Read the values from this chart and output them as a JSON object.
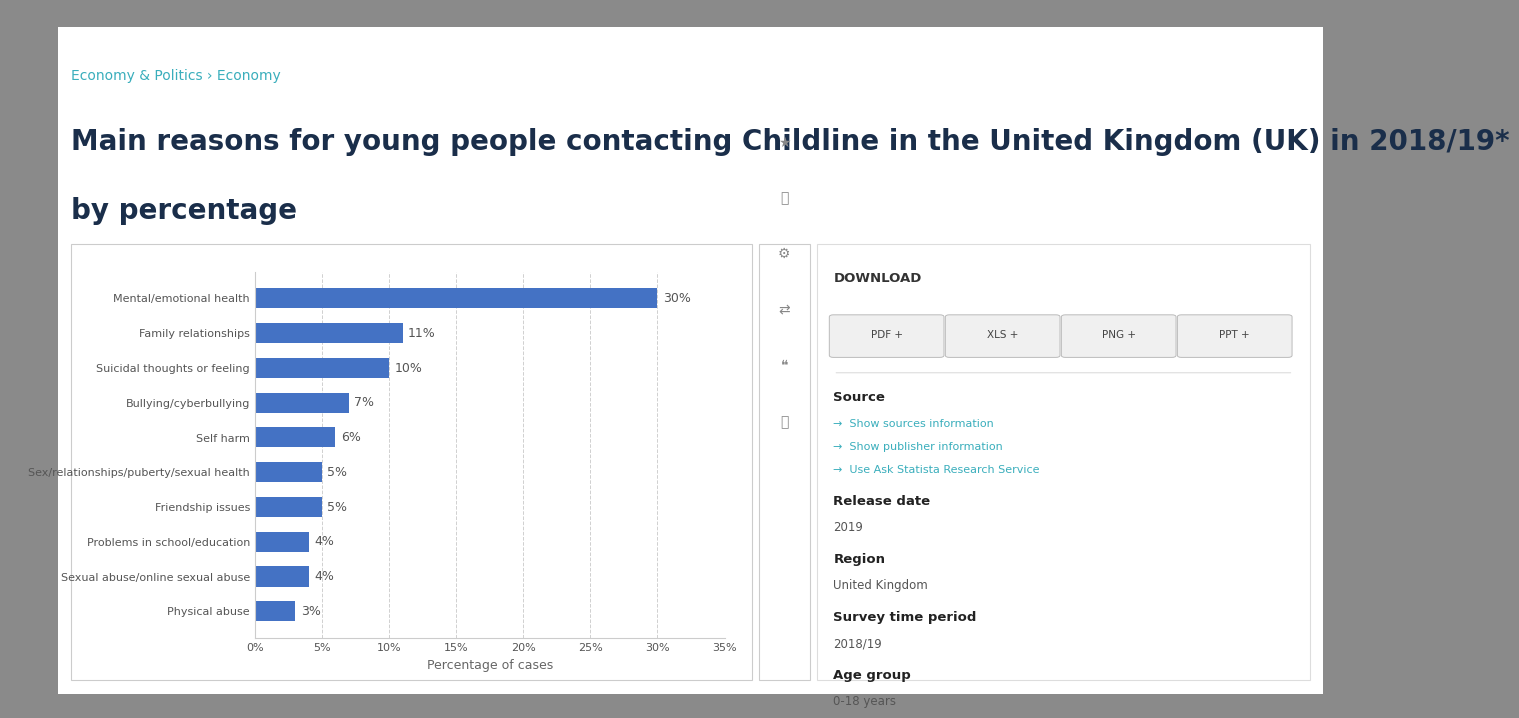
{
  "categories": [
    "Mental/emotional health",
    "Family relationships",
    "Suicidal thoughts or feeling",
    "Bullying/cyberbullying",
    "Self harm",
    "Sex/relationships/puberty/sexual health",
    "Friendship issues",
    "Problems in school/education",
    "Sexual abuse/online sexual abuse",
    "Physical abuse"
  ],
  "values": [
    30,
    11,
    10,
    7,
    6,
    5,
    5,
    4,
    4,
    3
  ],
  "bar_color": "#4472c4",
  "page_bg": "#ffffff",
  "outer_bg": "#8a8a8a",
  "chart_panel_bg": "#ffffff",
  "title_line1": "Main reasons for young people contacting Childline in the United Kingdom (UK) in 2018/19*",
  "title_line2": "by percentage",
  "breadcrumb": "Economy & Politics › Economy",
  "xlabel": "Percentage of cases",
  "xlim": [
    0,
    35
  ],
  "xtick_labels": [
    "0%",
    "5%",
    "10%",
    "15%",
    "20%",
    "25%",
    "30%",
    "35%"
  ],
  "xtick_values": [
    0,
    5,
    10,
    15,
    20,
    25,
    30,
    35
  ],
  "title_color": "#1a2e4a",
  "breadcrumb_color": "#3aaebc",
  "xlabel_color": "#666666",
  "ytick_color": "#555555",
  "xtick_color": "#555555",
  "value_label_color": "#555555",
  "grid_color": "#d0d0d0",
  "title_fontsize": 20,
  "breadcrumb_fontsize": 10,
  "axis_label_fontsize": 9,
  "tick_fontsize": 8,
  "value_fontsize": 9,
  "right_panel_bg": "#ffffff",
  "right_panel_border": "#dddddd",
  "download_label_color": "#333333",
  "info_bold_color": "#222222",
  "info_normal_color": "#555555",
  "link_color": "#3aaebc",
  "arrow_color": "#3aaebc"
}
